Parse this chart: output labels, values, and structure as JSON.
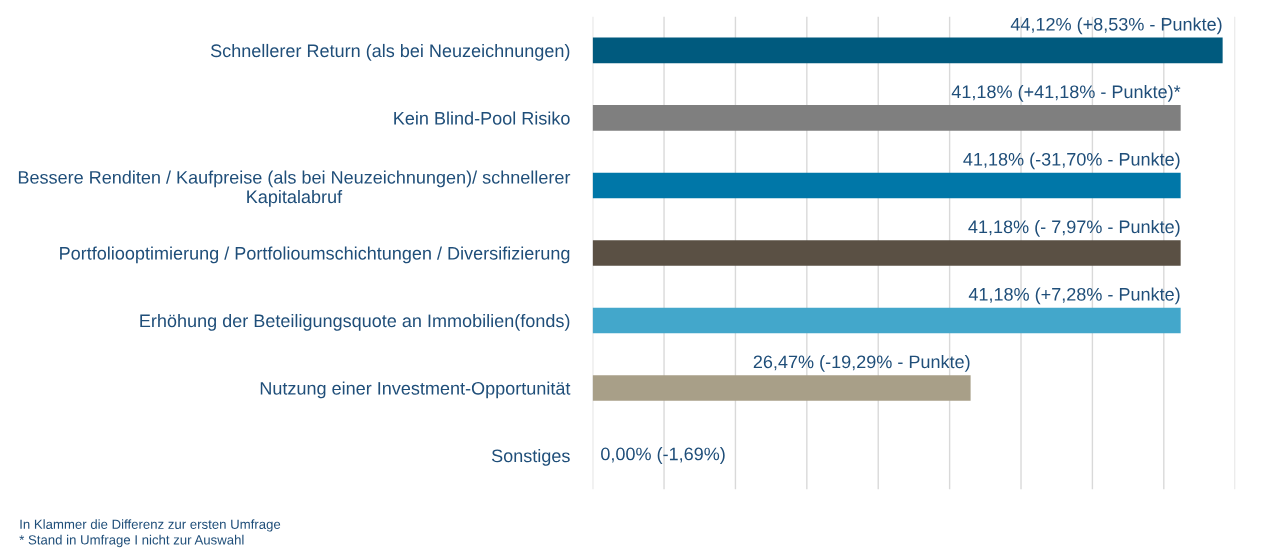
{
  "chart_data": {
    "type": "bar",
    "orientation": "horizontal",
    "categories": [
      "Schnellerer Return (als bei Neuzeichnungen)",
      "Kein Blind-Pool Risiko",
      "Bessere Renditen / Kaufpreise (als bei Neuzeichnungen)/ schnellerer\nKapitalabruf",
      "Portfoliooptimierung / Portfolioumschichtungen / Diversifizierung",
      "Erhöhung der Beteiligungsquote an Immobilien(fonds)",
      "Nutzung einer Investment-Opportunität",
      "Sonstiges"
    ],
    "values": [
      44.12,
      41.18,
      41.18,
      41.18,
      41.18,
      26.47,
      0
    ],
    "colors": [
      "#005a7e",
      "#7f7f7f",
      "#0077a8",
      "#5a5044",
      "#43a7cb",
      "#a89f88",
      "#a89f88"
    ],
    "value_labels": [
      "44,12% (+8,53% - Punkte)",
      "41,18% (+41,18% - Punkte)*",
      "41,18% (-31,70% - Punkte)",
      "41,18% (- 7,97% - Punkte)",
      "41,18% (+7,28% - Punkte)",
      "26,47% (-19,29% - Punkte)",
      "0,00% (-1,69%)"
    ],
    "xlim": [
      0,
      45
    ],
    "xticks": [
      {
        "value": 0,
        "label": null
      },
      {
        "value": 5,
        "label": null
      },
      {
        "value": 10,
        "label": null
      },
      {
        "value": 15,
        "label": null
      },
      {
        "value": 20,
        "label": null
      },
      {
        "value": 25,
        "label": null
      },
      {
        "value": 30,
        "label": null
      },
      {
        "value": 35,
        "label": null
      },
      {
        "value": 40,
        "label": null
      },
      {
        "value": 45,
        "label": null
      }
    ],
    "grid": "x",
    "tick_labels": "y",
    "legend": false,
    "annotations": [
      "In Klammer die Differenz zur ersten Umfrage",
      "* Stand in Umfrage I nicht zur Auswahl"
    ]
  }
}
